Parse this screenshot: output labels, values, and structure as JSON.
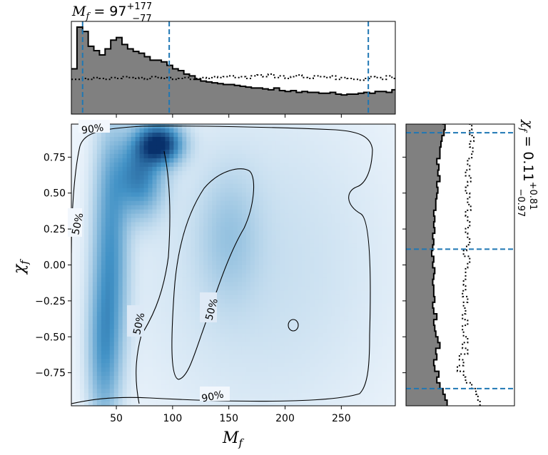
{
  "chart_data": {
    "type": "heatmap",
    "x_param": "M_f",
    "y_param": "χ_f",
    "xlabel_base": "M",
    "xlabel_sub": "f",
    "ylabel_base": "χ",
    "ylabel_sub": "f",
    "xlim": [
      10,
      298
    ],
    "ylim": [
      -0.98,
      0.98
    ],
    "xticks": [
      50,
      100,
      150,
      200,
      250
    ],
    "yticks": [
      -0.75,
      -0.5,
      -0.25,
      0.0,
      0.25,
      0.5,
      0.75
    ],
    "xtick_labels": [
      "50",
      "100",
      "150",
      "200",
      "250"
    ],
    "ytick_labels": [
      "−0.75",
      "−0.50",
      "−0.25",
      "0.00",
      "0.25",
      "0.50",
      "0.75"
    ],
    "top_title": {
      "lhs_base": "M",
      "lhs_sub": "f",
      "equals": " = ",
      "median": "97",
      "upper": "+177",
      "lower": "−77"
    },
    "right_title": {
      "lhs_base": "χ",
      "lhs_sub": "f",
      "equals": " = ",
      "median": "0.11",
      "upper": "+0.81",
      "lower": "−0.97"
    },
    "contour_labels": [
      "90%",
      "50%",
      "50%",
      "50%",
      "90%"
    ],
    "x_marginal": {
      "quantiles": [
        20,
        97,
        274
      ],
      "bins_start": 10,
      "bin_width": 5,
      "posterior": [
        0.52,
        1.0,
        0.95,
        0.78,
        0.73,
        0.68,
        0.75,
        0.85,
        0.88,
        0.8,
        0.75,
        0.72,
        0.7,
        0.66,
        0.62,
        0.62,
        0.6,
        0.56,
        0.52,
        0.5,
        0.46,
        0.44,
        0.4,
        0.38,
        0.37,
        0.36,
        0.35,
        0.34,
        0.34,
        0.33,
        0.32,
        0.31,
        0.3,
        0.3,
        0.29,
        0.28,
        0.3,
        0.27,
        0.26,
        0.27,
        0.25,
        0.26,
        0.25,
        0.25,
        0.24,
        0.24,
        0.25,
        0.23,
        0.22,
        0.23,
        0.23,
        0.24,
        0.25,
        0.24,
        0.26,
        0.26,
        0.25,
        0.28,
        0.27,
        0.26,
        0.26,
        0.25,
        0.24,
        0.22,
        0.22,
        0.21,
        0.22,
        0.23,
        0.24
      ],
      "prior": [
        0.4,
        0.4,
        0.41,
        0.4,
        0.42,
        0.41,
        0.4,
        0.42,
        0.41,
        0.43,
        0.42,
        0.41,
        0.42,
        0.4,
        0.43,
        0.42,
        0.41,
        0.42,
        0.4,
        0.41,
        0.42,
        0.4,
        0.41,
        0.42,
        0.41,
        0.43,
        0.42,
        0.43,
        0.44,
        0.42,
        0.43,
        0.41,
        0.44,
        0.45,
        0.43,
        0.46,
        0.42,
        0.44,
        0.41,
        0.43,
        0.45,
        0.42,
        0.41,
        0.44,
        0.43,
        0.42,
        0.44,
        0.4,
        0.42,
        0.41,
        0.4,
        0.39,
        0.41,
        0.43,
        0.42,
        0.4,
        0.44,
        0.41,
        0.42,
        0.4,
        0.41,
        0.44,
        0.42,
        0.4,
        0.41,
        0.45,
        0.42,
        0.4,
        0.41
      ]
    },
    "y_marginal": {
      "quantiles": [
        -0.86,
        0.11,
        0.92
      ],
      "bins_start": -0.98,
      "bin_width": 0.04,
      "posterior": [
        0.4,
        0.38,
        0.36,
        0.33,
        0.3,
        0.32,
        0.28,
        0.27,
        0.3,
        0.29,
        0.33,
        0.31,
        0.29,
        0.28,
        0.27,
        0.3,
        0.27,
        0.26,
        0.28,
        0.27,
        0.27,
        0.26,
        0.27,
        0.28,
        0.26,
        0.27,
        0.25,
        0.26,
        0.27,
        0.26,
        0.28,
        0.27,
        0.28,
        0.27,
        0.29,
        0.29,
        0.3,
        0.31,
        0.3,
        0.33,
        0.31,
        0.32,
        0.3,
        0.33,
        0.33,
        0.34,
        0.35,
        0.37,
        0.38,
        0.36
      ],
      "prior": [
        0.72,
        0.7,
        0.68,
        0.64,
        0.58,
        0.56,
        0.5,
        0.56,
        0.52,
        0.6,
        0.55,
        0.6,
        0.56,
        0.55,
        0.6,
        0.55,
        0.58,
        0.56,
        0.6,
        0.55,
        0.58,
        0.56,
        0.58,
        0.58,
        0.6,
        0.62,
        0.56,
        0.59,
        0.62,
        0.6,
        0.58,
        0.62,
        0.6,
        0.58,
        0.63,
        0.6,
        0.62,
        0.58,
        0.6,
        0.63,
        0.58,
        0.62,
        0.6,
        0.64,
        0.65,
        0.62,
        0.66,
        0.62,
        0.64,
        0.6
      ]
    },
    "density_peaks": [
      {
        "x": 88,
        "y": 0.84,
        "sx": 13,
        "sy": 0.09,
        "w": 1.0
      },
      {
        "x": 70,
        "y": 0.62,
        "sx": 14,
        "sy": 0.18,
        "w": 0.55
      },
      {
        "x": 45,
        "y": 0.1,
        "sx": 10,
        "sy": 0.55,
        "w": 0.42
      },
      {
        "x": 38,
        "y": -0.6,
        "sx": 9,
        "sy": 0.35,
        "w": 0.32
      },
      {
        "x": 150,
        "y": 0.2,
        "sx": 18,
        "sy": 0.3,
        "w": 0.14
      },
      {
        "x": 180,
        "y": 0.0,
        "sx": 80,
        "sy": 0.8,
        "w": 0.08
      }
    ],
    "colors": {
      "cmap_low": "#f2f7fd",
      "cmap_high": "#08306b",
      "marginal_fill": "#808080",
      "quantile_line": "#1f77b4"
    }
  }
}
